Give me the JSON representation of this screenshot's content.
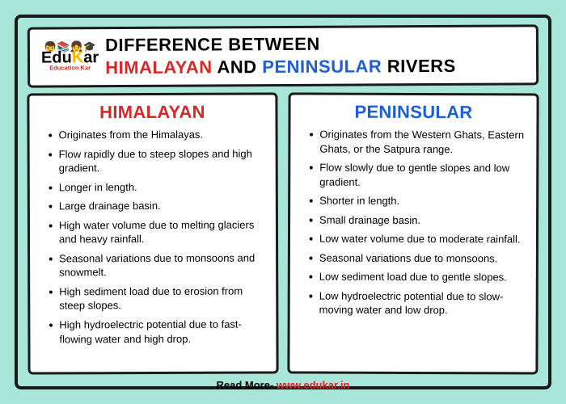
{
  "colors": {
    "background": "#a8e6d9",
    "card_bg": "#ffffff",
    "border": "#1a1a1a",
    "red": "#d62828",
    "blue": "#1d5fd6",
    "black": "#000000",
    "yellow": "#f5b800"
  },
  "logo": {
    "emoji": "👦📚👧🎓",
    "title_pre": "Edu",
    "title_mid": "K",
    "title_post": "ar",
    "tagline": "Education Kar"
  },
  "title": {
    "line1": "DIFFERENCE BETWEEN",
    "himalayan": "HIMALAYAN",
    "and": " AND ",
    "peninsular": "PENINSULAR",
    "rivers": " RIVERS"
  },
  "left": {
    "heading": "HIMALAYAN",
    "points": [
      "Originates from the Himalayas.",
      "Flow rapidly due to steep slopes and high gradient.",
      "Longer in length.",
      "Large drainage basin.",
      "High water volume due to melting glaciers and heavy rainfall.",
      "Seasonal variations due to monsoons and snowmelt.",
      "High sediment load due to erosion from steep slopes.",
      "High hydroelectric potential due to fast-flowing water and high drop."
    ]
  },
  "right": {
    "heading": "PENINSULAR",
    "points": [
      "Originates from the Western Ghats, Eastern Ghats, or the Satpura range.",
      "Flow slowly due to gentle slopes and low gradient.",
      "Shorter in length.",
      "Small drainage basin.",
      "Low water volume due to moderate rainfall.",
      "Seasonal variations due to monsoons.",
      "Low sediment load due to gentle slopes.",
      "Low hydroelectric potential due to slow-moving water and low drop."
    ]
  },
  "footer": {
    "label": "Read More- ",
    "url": "www.edukar.in"
  }
}
